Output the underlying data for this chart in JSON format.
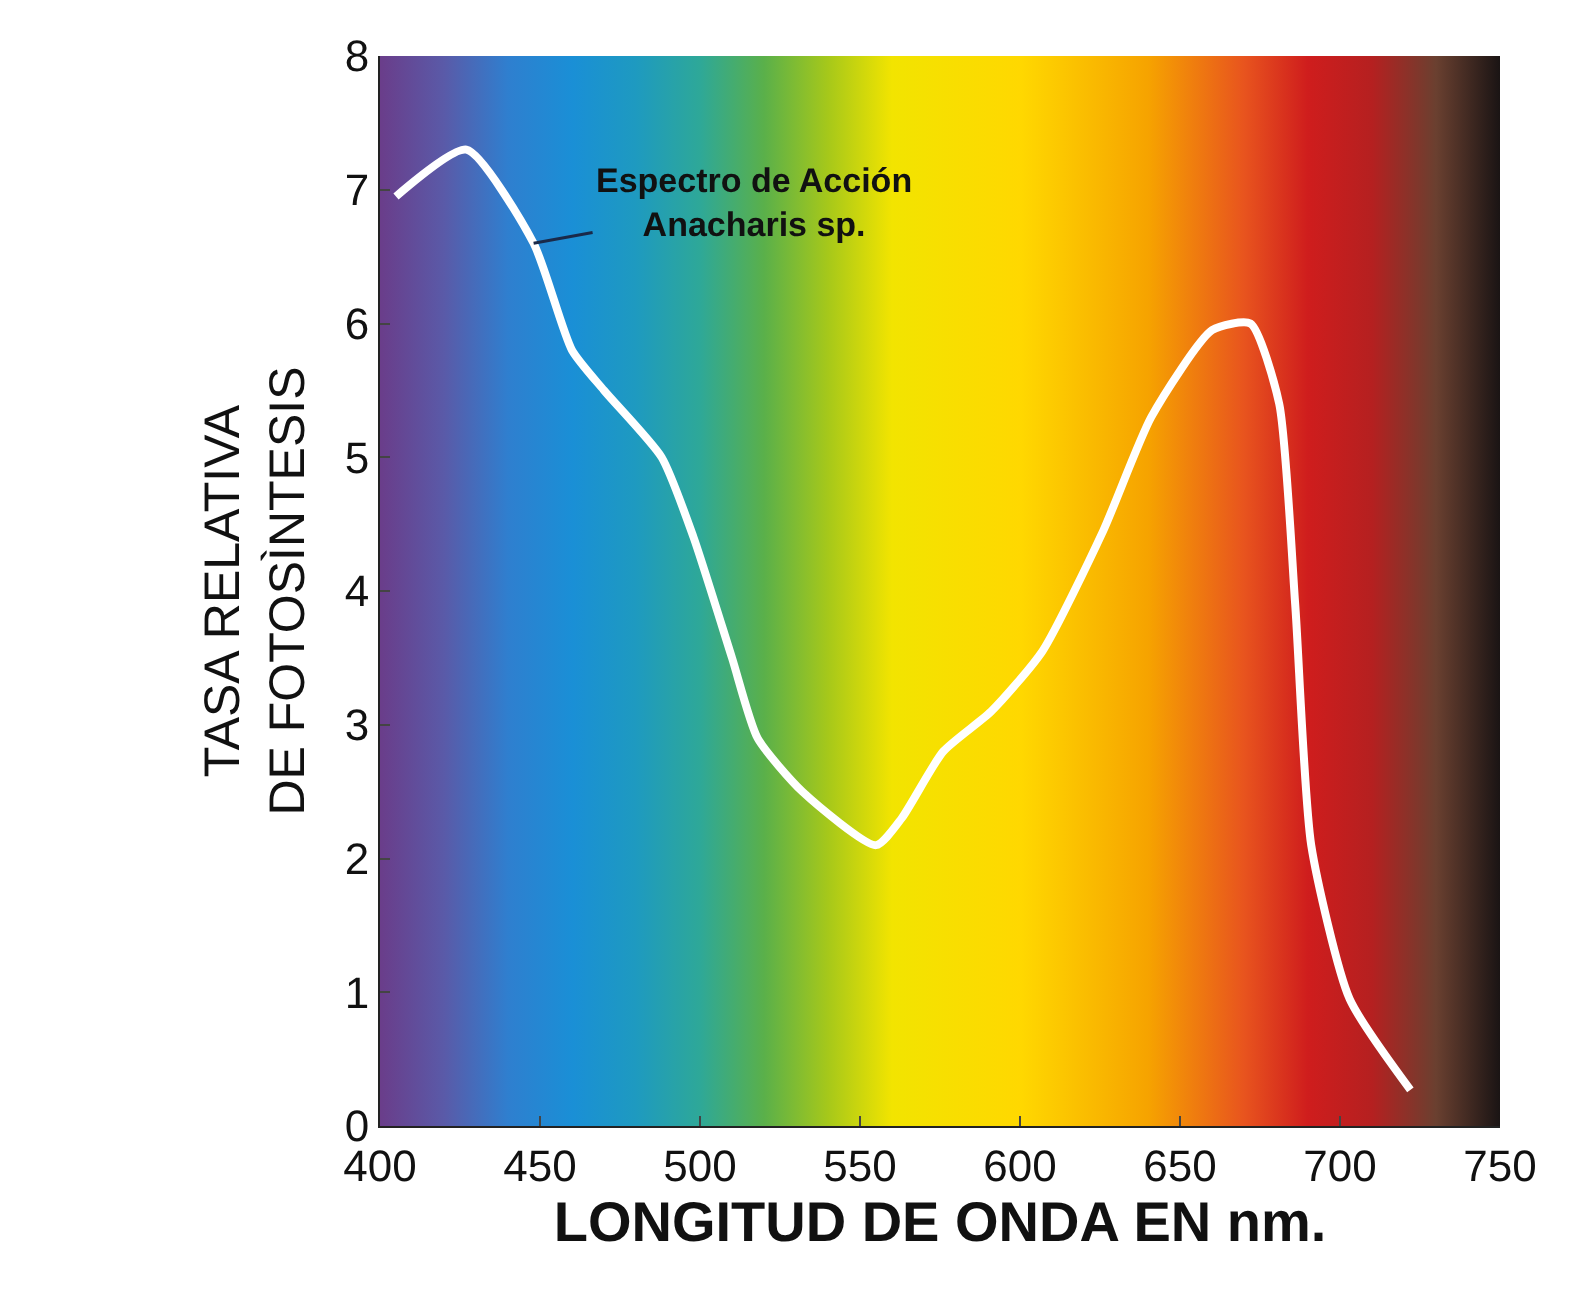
{
  "chart_data": {
    "type": "line",
    "xlabel": "LONGITUD DE ONDA EN nm.",
    "ylabel": "TASA RELATIVA\nDE FOTOSÌNTESIS",
    "x": [
      405,
      427,
      448,
      460,
      470,
      488,
      498,
      510,
      518,
      532,
      555,
      563,
      576,
      591,
      607,
      626,
      641,
      660,
      672,
      681,
      686,
      691,
      703,
      722
    ],
    "series": [
      {
        "color": "#ffffff",
        "values": [
          6.95,
          7.3,
          6.6,
          5.8,
          5.5,
          5.0,
          4.4,
          3.5,
          2.9,
          2.5,
          2.1,
          2.3,
          2.8,
          3.1,
          3.55,
          4.45,
          5.3,
          5.95,
          6.0,
          5.4,
          3.9,
          2.1,
          0.95,
          0.27
        ]
      }
    ],
    "xlim": [
      400,
      750
    ],
    "xticks": [
      400,
      450,
      500,
      550,
      600,
      650,
      700,
      750
    ],
    "ylim": [
      0,
      8
    ],
    "yticks": [
      0,
      1,
      2,
      3,
      4,
      5,
      6,
      7,
      8
    ],
    "annotations": [
      {
        "text": "Espectro de Acción\nAnacharis sp.",
        "x": 448,
        "y": 6.6
      }
    ],
    "grid": false,
    "line_style": "solid",
    "marker": "none"
  }
}
